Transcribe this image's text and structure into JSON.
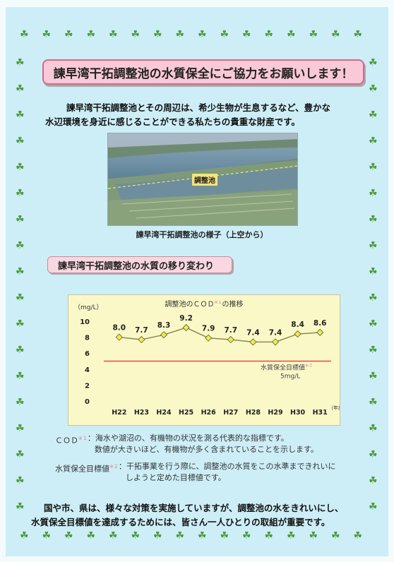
{
  "page": {
    "decoration_icon": "seedling-icon",
    "title": "諫早湾干拓調整池の水質保全にご協力をお願いします！",
    "intro_line1": "諫早湾干拓調整池とその周辺は、希少生物が生息するなど、豊かな",
    "intro_line2": "水辺環境を身近に感じることができる私たちの貴重な財産です。",
    "photo_label": "調整池",
    "photo_caption": "諫早湾干拓調整池の様子（上空から）",
    "section_title": "諫早湾干拓調整池の水質の移り変わり",
    "notes": [
      {
        "term": "ＣＯＤ",
        "mark": "※１",
        "text1": "：海水や湖沼の、有機物の状況を測る代表的な指標です。",
        "text2": "数値が大きいほど、有機物が多く含まれていることを示します。"
      },
      {
        "term": "水質保全目標値",
        "mark": "※２",
        "text1": "：干拓事業を行う際に、調整池の水質をこの水準まできれいに",
        "text2": "しようと定めた目標値です。"
      }
    ],
    "closing_line1": "国や市、県は、様々な対策を実施していますが、調整池の水をきれいにし、",
    "closing_line2": "水質保全目標値を達成するためには、皆さん一人ひとりの取組が重要です。"
  },
  "chart_data": {
    "type": "line",
    "title": "調整池のＣＯＤ",
    "title_mark": "※１",
    "title_suffix": "の推移",
    "ylabel": "（mg/L）",
    "xlabel": "（年度）",
    "categories": [
      "H22",
      "H23",
      "H24",
      "H25",
      "H26",
      "H27",
      "H28",
      "H29",
      "H30",
      "H31"
    ],
    "values": [
      8.0,
      7.7,
      8.3,
      9.2,
      7.9,
      7.7,
      7.4,
      7.4,
      8.4,
      8.6
    ],
    "value_labels": [
      "8.0",
      "7.7",
      "8.3",
      "9.2",
      "7.9",
      "7.7",
      "7.4",
      "7.4",
      "8.4",
      "8.6"
    ],
    "yticks": [
      "0",
      "2",
      "4",
      "6",
      "8",
      "10"
    ],
    "ylim": [
      0,
      10
    ],
    "target_value": 5,
    "target_label": "水質保全目標値",
    "target_mark": "※２",
    "target_value_label": "5mg/L",
    "grid": false,
    "colors": {
      "series": "#8a8a55",
      "marker": "#f2ee3a",
      "target": "#e04a4a"
    }
  }
}
